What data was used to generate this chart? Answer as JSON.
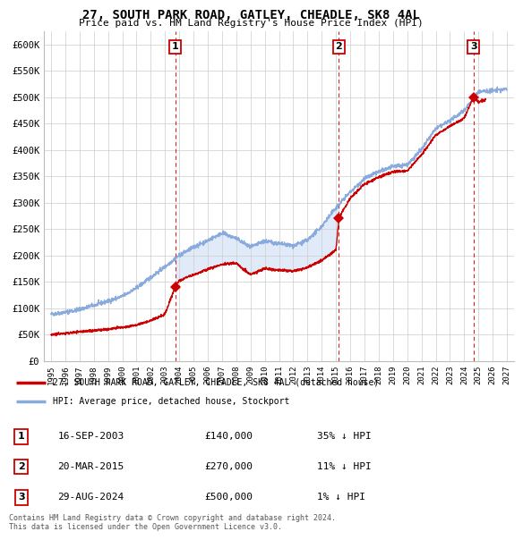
{
  "title": "27, SOUTH PARK ROAD, GATLEY, CHEADLE, SK8 4AL",
  "subtitle": "Price paid vs. HM Land Registry's House Price Index (HPI)",
  "legend_line1": "27, SOUTH PARK ROAD, GATLEY, CHEADLE, SK8 4AL (detached house)",
  "legend_line2": "HPI: Average price, detached house, Stockport",
  "sale_color": "#cc0000",
  "hpi_color": "#88aadd",
  "shade_color": "#ccddf5",
  "vline_color": "#cc0000",
  "ytick_labels": [
    "£0",
    "£50K",
    "£100K",
    "£150K",
    "£200K",
    "£250K",
    "£300K",
    "£350K",
    "£400K",
    "£450K",
    "£500K",
    "£550K",
    "£600K"
  ],
  "ytick_values": [
    0,
    50000,
    100000,
    150000,
    200000,
    250000,
    300000,
    350000,
    400000,
    450000,
    500000,
    550000,
    600000
  ],
  "ylim": [
    0,
    625000
  ],
  "xlim_start": 1994.5,
  "xlim_end": 2027.5,
  "sales": [
    {
      "date": 2003.71,
      "price": 140000,
      "label": "1"
    },
    {
      "date": 2015.21,
      "price": 270000,
      "label": "2"
    },
    {
      "date": 2024.66,
      "price": 500000,
      "label": "3"
    }
  ],
  "hpi_anchors": [
    [
      1995.0,
      88000
    ],
    [
      1996.0,
      92000
    ],
    [
      1997.0,
      97000
    ],
    [
      1998.0,
      105000
    ],
    [
      1999.0,
      113000
    ],
    [
      2000.0,
      122000
    ],
    [
      2001.0,
      138000
    ],
    [
      2002.0,
      158000
    ],
    [
      2003.0,
      178000
    ],
    [
      2004.0,
      200000
    ],
    [
      2005.0,
      215000
    ],
    [
      2006.0,
      228000
    ],
    [
      2007.0,
      242000
    ],
    [
      2008.0,
      232000
    ],
    [
      2009.0,
      215000
    ],
    [
      2010.0,
      227000
    ],
    [
      2011.0,
      222000
    ],
    [
      2012.0,
      218000
    ],
    [
      2013.0,
      228000
    ],
    [
      2014.0,
      255000
    ],
    [
      2015.0,
      290000
    ],
    [
      2016.0,
      320000
    ],
    [
      2017.0,
      345000
    ],
    [
      2018.0,
      358000
    ],
    [
      2019.0,
      368000
    ],
    [
      2020.0,
      372000
    ],
    [
      2021.0,
      400000
    ],
    [
      2022.0,
      440000
    ],
    [
      2023.0,
      455000
    ],
    [
      2024.0,
      475000
    ],
    [
      2025.0,
      510000
    ],
    [
      2026.0,
      512000
    ],
    [
      2027.0,
      515000
    ]
  ],
  "sale_anchors": [
    [
      1995.0,
      50000
    ],
    [
      1996.0,
      52000
    ],
    [
      1997.0,
      55000
    ],
    [
      1998.0,
      57000
    ],
    [
      1999.0,
      60000
    ],
    [
      2000.0,
      63000
    ],
    [
      2001.0,
      68000
    ],
    [
      2002.0,
      76000
    ],
    [
      2003.0,
      88000
    ],
    [
      2003.71,
      140000
    ],
    [
      2004.0,
      152000
    ],
    [
      2005.0,
      163000
    ],
    [
      2006.0,
      173000
    ],
    [
      2007.0,
      183000
    ],
    [
      2008.0,
      185000
    ],
    [
      2009.0,
      163000
    ],
    [
      2010.0,
      175000
    ],
    [
      2011.0,
      172000
    ],
    [
      2012.0,
      170000
    ],
    [
      2013.0,
      177000
    ],
    [
      2014.0,
      190000
    ],
    [
      2015.0,
      210000
    ],
    [
      2015.21,
      270000
    ],
    [
      2015.5,
      285000
    ],
    [
      2016.0,
      308000
    ],
    [
      2017.0,
      335000
    ],
    [
      2018.0,
      348000
    ],
    [
      2019.0,
      358000
    ],
    [
      2020.0,
      360000
    ],
    [
      2021.0,
      390000
    ],
    [
      2022.0,
      428000
    ],
    [
      2023.0,
      445000
    ],
    [
      2024.0,
      460000
    ],
    [
      2024.66,
      500000
    ],
    [
      2025.0,
      490000
    ],
    [
      2025.5,
      495000
    ]
  ],
  "table_rows": [
    {
      "num": "1",
      "date": "16-SEP-2003",
      "price": "£140,000",
      "pct": "35% ↓ HPI"
    },
    {
      "num": "2",
      "date": "20-MAR-2015",
      "price": "£270,000",
      "pct": "11% ↓ HPI"
    },
    {
      "num": "3",
      "date": "29-AUG-2024",
      "price": "£500,000",
      "pct": "1% ↓ HPI"
    }
  ],
  "footer": "Contains HM Land Registry data © Crown copyright and database right 2024.\nThis data is licensed under the Open Government Licence v3.0."
}
